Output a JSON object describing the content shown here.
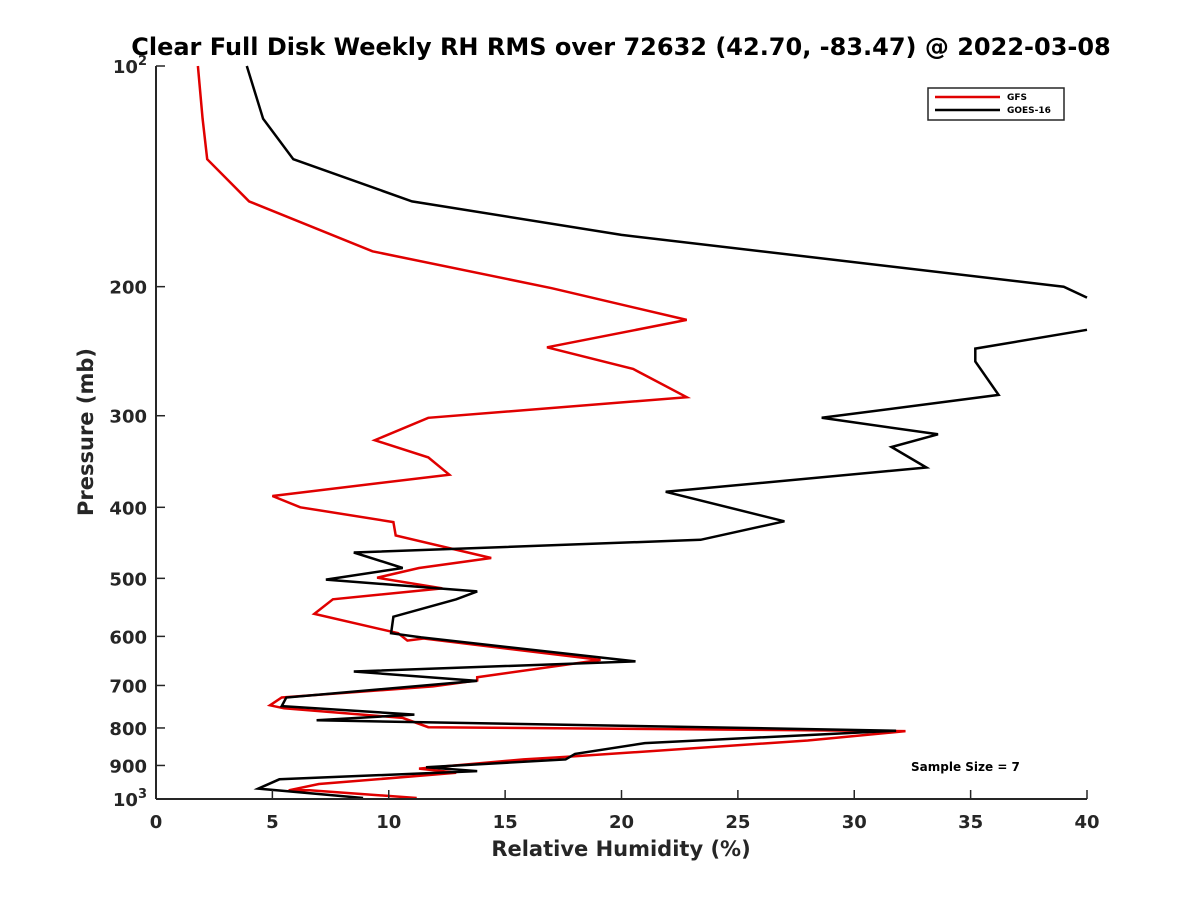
{
  "chart_data": {
    "type": "line",
    "title": "Clear Full Disk Weekly RH RMS over 72632 (42.70, -83.47) @ 2022-03-08",
    "xlabel": "Relative Humidity (%)",
    "ylabel": "Pressure (mb)",
    "xlim": [
      0,
      40
    ],
    "ylim": [
      100,
      1000
    ],
    "y_scale": "log",
    "y_reversed": true,
    "grid": false,
    "legend_position": "top-right",
    "annotation": "Sample Size = 7",
    "x_ticks": [
      "0",
      "5",
      "10",
      "15",
      "20",
      "25",
      "30",
      "35",
      "40"
    ],
    "x_tick_values": [
      0,
      5,
      10,
      15,
      20,
      25,
      30,
      35,
      40
    ],
    "y_ticks": [
      {
        "value": 100,
        "label": "10",
        "sup": "2"
      },
      {
        "value": 200,
        "label": "200",
        "sup": ""
      },
      {
        "value": 300,
        "label": "300",
        "sup": ""
      },
      {
        "value": 400,
        "label": "400",
        "sup": ""
      },
      {
        "value": 500,
        "label": "500",
        "sup": ""
      },
      {
        "value": 600,
        "label": "600",
        "sup": ""
      },
      {
        "value": 700,
        "label": "700",
        "sup": ""
      },
      {
        "value": 800,
        "label": "800",
        "sup": ""
      },
      {
        "value": 900,
        "label": "900",
        "sup": ""
      },
      {
        "value": 1000,
        "label": "10",
        "sup": "3"
      }
    ],
    "series": [
      {
        "name": "GFS",
        "color": "#e00000",
        "points": [
          [
            1.8,
            100
          ],
          [
            2.0,
            118
          ],
          [
            2.2,
            134
          ],
          [
            4.0,
            153
          ],
          [
            9.3,
            179
          ],
          [
            17.0,
            201
          ],
          [
            22.8,
            222
          ],
          [
            16.8,
            242
          ],
          [
            20.5,
            259
          ],
          [
            22.8,
            283
          ],
          [
            11.7,
            302
          ],
          [
            9.4,
            324
          ],
          [
            11.7,
            342
          ],
          [
            12.6,
            361
          ],
          [
            5.0,
            386
          ],
          [
            6.2,
            400
          ],
          [
            10.2,
            419
          ],
          [
            10.3,
            437
          ],
          [
            14.4,
            469
          ],
          [
            11.3,
            484
          ],
          [
            9.5,
            499
          ],
          [
            12.3,
            516
          ],
          [
            7.6,
            534
          ],
          [
            6.8,
            559
          ],
          [
            10.4,
            594
          ],
          [
            10.8,
            608
          ],
          [
            11.5,
            604
          ],
          [
            19.1,
            646
          ],
          [
            13.8,
            682
          ],
          [
            13.8,
            689
          ],
          [
            11.9,
            702
          ],
          [
            5.4,
            727
          ],
          [
            4.9,
            745
          ],
          [
            5.5,
            752
          ],
          [
            10.6,
            775
          ],
          [
            11.7,
            798
          ],
          [
            32.2,
            808
          ],
          [
            28.0,
            832
          ],
          [
            17.6,
            876
          ],
          [
            15.8,
            883
          ],
          [
            11.3,
            909
          ],
          [
            12.3,
            916
          ],
          [
            12.9,
            921
          ],
          [
            7.0,
            954
          ],
          [
            5.7,
            973
          ],
          [
            6.6,
            973
          ],
          [
            11.2,
            997
          ]
        ]
      },
      {
        "name": "GOES-16",
        "color": "#000000",
        "points": [
          [
            3.9,
            100
          ],
          [
            4.6,
            118
          ],
          [
            5.9,
            134
          ],
          [
            11.0,
            153
          ],
          [
            20.0,
            170
          ],
          [
            39.0,
            200
          ],
          [
            40.0,
            207
          ],
          [
            null,
            null
          ],
          [
            40.0,
            229
          ],
          [
            35.2,
            243
          ],
          [
            35.2,
            253
          ],
          [
            36.2,
            281
          ],
          [
            28.6,
            302
          ],
          [
            33.6,
            318
          ],
          [
            31.6,
            331
          ],
          [
            33.1,
            353
          ],
          [
            21.9,
            381
          ],
          [
            27.0,
            418
          ],
          [
            23.4,
            443
          ],
          [
            8.5,
            461
          ],
          [
            10.6,
            484
          ],
          [
            7.3,
            502
          ],
          [
            13.8,
            521
          ],
          [
            12.9,
            534
          ],
          [
            10.2,
            564
          ],
          [
            10.1,
            594
          ],
          [
            11.4,
            602
          ],
          [
            20.6,
            649
          ],
          [
            8.5,
            670
          ],
          [
            13.8,
            690
          ],
          [
            5.6,
            727
          ],
          [
            5.4,
            747
          ],
          [
            11.1,
            767
          ],
          [
            6.9,
            781
          ],
          [
            31.8,
            807
          ],
          [
            21.0,
            839
          ],
          [
            18.0,
            868
          ],
          [
            17.6,
            883
          ],
          [
            11.6,
            905
          ],
          [
            13.8,
            916
          ],
          [
            5.3,
            940
          ],
          [
            4.4,
            968
          ],
          [
            8.9,
            997
          ]
        ]
      }
    ]
  }
}
